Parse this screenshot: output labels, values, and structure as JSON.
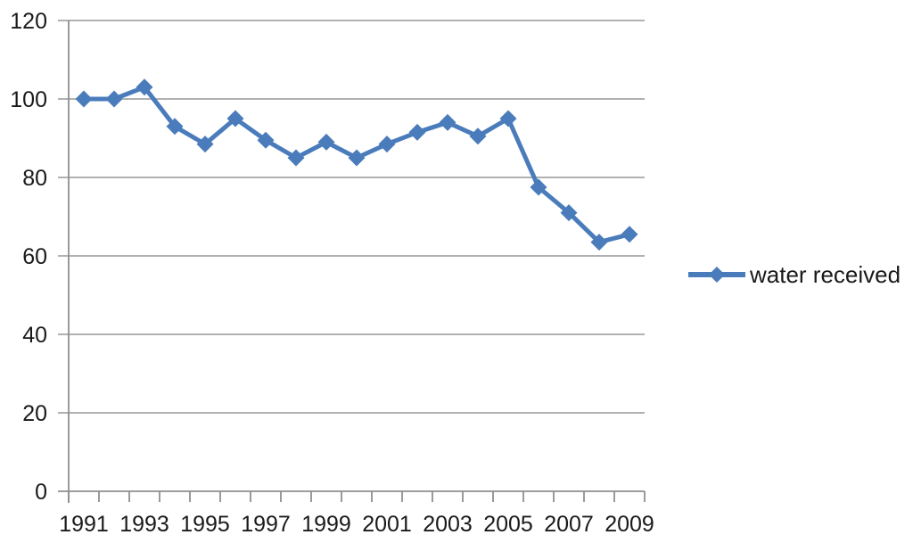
{
  "page": {
    "background": "#ffffff"
  },
  "chart_data": {
    "type": "line",
    "title": "",
    "xlabel": "",
    "ylabel": "",
    "x": [
      1991,
      1992,
      1993,
      1994,
      1995,
      1996,
      1997,
      1998,
      1999,
      2000,
      2001,
      2002,
      2003,
      2004,
      2005,
      2006,
      2007,
      2008,
      2009
    ],
    "series": [
      {
        "name": "water received",
        "marker": "diamond",
        "color": "#4A7CBC",
        "values": [
          100,
          100,
          103,
          93,
          88.5,
          95,
          89.5,
          85,
          89,
          85,
          88.5,
          91.5,
          94,
          90.5,
          95,
          77.5,
          71,
          63.5,
          65.5
        ]
      }
    ],
    "ylim": [
      0,
      120
    ],
    "yticks": [
      0,
      20,
      40,
      60,
      80,
      100,
      120
    ],
    "xtick_labels": [
      "1991",
      "1993",
      "1995",
      "1997",
      "1999",
      "2001",
      "2003",
      "2005",
      "2007",
      "2009"
    ],
    "grid": "horizontal",
    "grid_color": "#A6A6A6",
    "axis_color": "#8F8F8F",
    "text_color": "#1a1a1a",
    "legend": {
      "position": "right",
      "label": "water received"
    }
  }
}
